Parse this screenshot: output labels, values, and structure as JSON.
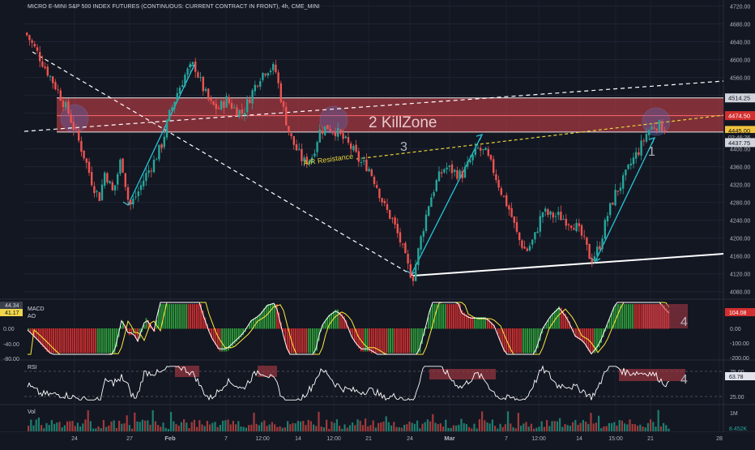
{
  "title": "MICRO E-MINI S&P 500 INDEX FUTURES (CONTINUOUS: CURRENT CONTRACT IN FRONT), 4h, CME_MINI",
  "colors": {
    "background": "#131722",
    "up": "#26a69a",
    "down": "#ef5350",
    "killzone": "#d9434b",
    "trend": "#26c6da",
    "support": "#ffffff",
    "resistance_dash": "#e6d23a",
    "macd_hist_up": "#2e9e3a",
    "macd_hist_down": "#d32f2f",
    "macd_line": "#ffffff",
    "signal_line": "#ffeb3b",
    "rsi_line": "#ffffff"
  },
  "chart_data": {
    "type": "candlestick",
    "price_ticks": [
      "4720.00",
      "4680.00",
      "4640.00",
      "4600.00",
      "4560.00",
      "4520.00",
      "4480.00",
      "4440.00",
      "4400.00",
      "4360.00",
      "4320.00",
      "4280.00",
      "4240.00",
      "4200.00",
      "4160.00",
      "4120.00",
      "4080.00"
    ],
    "price_range": [
      4065,
      4730
    ],
    "price_labels": {
      "top_band": "4514.25",
      "killzone": "4474.50",
      "last": "4445.00",
      "countdown": "02:46:26",
      "bottom_band": "4437.75"
    },
    "x_ticks": [
      "24",
      "27",
      "Feb",
      "7",
      "12:00",
      "14",
      "12:00",
      "21",
      "24",
      "Mar",
      "7",
      "12:00",
      "14",
      "15:00",
      "21",
      "28"
    ],
    "killzone_band": {
      "top": 4514.25,
      "bottom": 4437.75,
      "line": 4474.5
    },
    "annotations": {
      "killzone": "2 KillZone",
      "ar_resistance": "A/R Resistance",
      "wave3": "3",
      "wave1": "1",
      "macd_four": "4",
      "rsi_four": "4"
    },
    "macd": {
      "labels": [
        "MACD",
        "AO"
      ],
      "left_values": [
        "44.34",
        "41.17"
      ],
      "left_ticks": [
        "0.00",
        "-40.00",
        "-80.00"
      ],
      "right_badge": "104.08",
      "right_ticks": [
        "0.00",
        "-100.00",
        "-200.00"
      ]
    },
    "rsi": {
      "label": "RSI",
      "ticks": [
        "75.00",
        "25.00"
      ],
      "value": "63.78"
    },
    "volume": {
      "label": "Vol",
      "ticks": [
        "1M"
      ],
      "value": "8.452K"
    }
  }
}
